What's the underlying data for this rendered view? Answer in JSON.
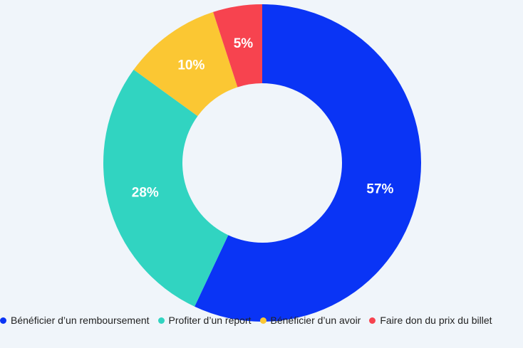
{
  "chart_data": {
    "type": "pie",
    "variant": "donut",
    "legend_position": "bottom",
    "slices": [
      {
        "label": "Bénéficier d’un remboursement",
        "value": 57,
        "display": "57%",
        "color": "#0a34f5"
      },
      {
        "label": "Profiter d’un report",
        "value": 28,
        "display": "28%",
        "color": "#31d4c1"
      },
      {
        "label": "Bénéficier d’un avoir",
        "value": 10,
        "display": "10%",
        "color": "#fbc733"
      },
      {
        "label": "Faire don du prix du billet",
        "value": 5,
        "display": "5%",
        "color": "#f7434f"
      }
    ]
  }
}
